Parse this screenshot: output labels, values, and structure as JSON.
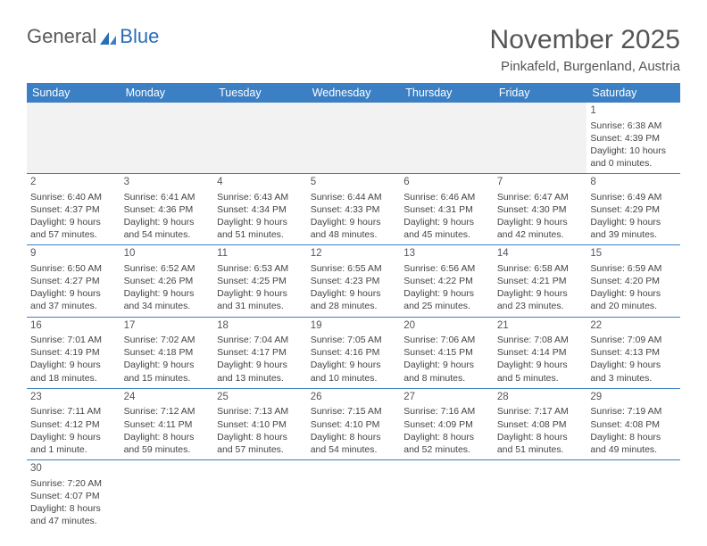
{
  "logo": {
    "part1": "General",
    "part2": "Blue"
  },
  "header": {
    "month_title": "November 2025",
    "location": "Pinkafeld, Burgenland, Austria"
  },
  "colors": {
    "header_bg": "#3b7fc4",
    "header_text": "#ffffff",
    "row_border": "#3b7fc4",
    "empty_bg": "#f2f2f2",
    "text": "#444444",
    "logo_blue": "#2a6db5"
  },
  "dow": [
    "Sunday",
    "Monday",
    "Tuesday",
    "Wednesday",
    "Thursday",
    "Friday",
    "Saturday"
  ],
  "weeks": [
    [
      null,
      null,
      null,
      null,
      null,
      null,
      {
        "d": "1",
        "sr": "Sunrise: 6:38 AM",
        "ss": "Sunset: 4:39 PM",
        "dl1": "Daylight: 10 hours",
        "dl2": "and 0 minutes."
      }
    ],
    [
      {
        "d": "2",
        "sr": "Sunrise: 6:40 AM",
        "ss": "Sunset: 4:37 PM",
        "dl1": "Daylight: 9 hours",
        "dl2": "and 57 minutes."
      },
      {
        "d": "3",
        "sr": "Sunrise: 6:41 AM",
        "ss": "Sunset: 4:36 PM",
        "dl1": "Daylight: 9 hours",
        "dl2": "and 54 minutes."
      },
      {
        "d": "4",
        "sr": "Sunrise: 6:43 AM",
        "ss": "Sunset: 4:34 PM",
        "dl1": "Daylight: 9 hours",
        "dl2": "and 51 minutes."
      },
      {
        "d": "5",
        "sr": "Sunrise: 6:44 AM",
        "ss": "Sunset: 4:33 PM",
        "dl1": "Daylight: 9 hours",
        "dl2": "and 48 minutes."
      },
      {
        "d": "6",
        "sr": "Sunrise: 6:46 AM",
        "ss": "Sunset: 4:31 PM",
        "dl1": "Daylight: 9 hours",
        "dl2": "and 45 minutes."
      },
      {
        "d": "7",
        "sr": "Sunrise: 6:47 AM",
        "ss": "Sunset: 4:30 PM",
        "dl1": "Daylight: 9 hours",
        "dl2": "and 42 minutes."
      },
      {
        "d": "8",
        "sr": "Sunrise: 6:49 AM",
        "ss": "Sunset: 4:29 PM",
        "dl1": "Daylight: 9 hours",
        "dl2": "and 39 minutes."
      }
    ],
    [
      {
        "d": "9",
        "sr": "Sunrise: 6:50 AM",
        "ss": "Sunset: 4:27 PM",
        "dl1": "Daylight: 9 hours",
        "dl2": "and 37 minutes."
      },
      {
        "d": "10",
        "sr": "Sunrise: 6:52 AM",
        "ss": "Sunset: 4:26 PM",
        "dl1": "Daylight: 9 hours",
        "dl2": "and 34 minutes."
      },
      {
        "d": "11",
        "sr": "Sunrise: 6:53 AM",
        "ss": "Sunset: 4:25 PM",
        "dl1": "Daylight: 9 hours",
        "dl2": "and 31 minutes."
      },
      {
        "d": "12",
        "sr": "Sunrise: 6:55 AM",
        "ss": "Sunset: 4:23 PM",
        "dl1": "Daylight: 9 hours",
        "dl2": "and 28 minutes."
      },
      {
        "d": "13",
        "sr": "Sunrise: 6:56 AM",
        "ss": "Sunset: 4:22 PM",
        "dl1": "Daylight: 9 hours",
        "dl2": "and 25 minutes."
      },
      {
        "d": "14",
        "sr": "Sunrise: 6:58 AM",
        "ss": "Sunset: 4:21 PM",
        "dl1": "Daylight: 9 hours",
        "dl2": "and 23 minutes."
      },
      {
        "d": "15",
        "sr": "Sunrise: 6:59 AM",
        "ss": "Sunset: 4:20 PM",
        "dl1": "Daylight: 9 hours",
        "dl2": "and 20 minutes."
      }
    ],
    [
      {
        "d": "16",
        "sr": "Sunrise: 7:01 AM",
        "ss": "Sunset: 4:19 PM",
        "dl1": "Daylight: 9 hours",
        "dl2": "and 18 minutes."
      },
      {
        "d": "17",
        "sr": "Sunrise: 7:02 AM",
        "ss": "Sunset: 4:18 PM",
        "dl1": "Daylight: 9 hours",
        "dl2": "and 15 minutes."
      },
      {
        "d": "18",
        "sr": "Sunrise: 7:04 AM",
        "ss": "Sunset: 4:17 PM",
        "dl1": "Daylight: 9 hours",
        "dl2": "and 13 minutes."
      },
      {
        "d": "19",
        "sr": "Sunrise: 7:05 AM",
        "ss": "Sunset: 4:16 PM",
        "dl1": "Daylight: 9 hours",
        "dl2": "and 10 minutes."
      },
      {
        "d": "20",
        "sr": "Sunrise: 7:06 AM",
        "ss": "Sunset: 4:15 PM",
        "dl1": "Daylight: 9 hours",
        "dl2": "and 8 minutes."
      },
      {
        "d": "21",
        "sr": "Sunrise: 7:08 AM",
        "ss": "Sunset: 4:14 PM",
        "dl1": "Daylight: 9 hours",
        "dl2": "and 5 minutes."
      },
      {
        "d": "22",
        "sr": "Sunrise: 7:09 AM",
        "ss": "Sunset: 4:13 PM",
        "dl1": "Daylight: 9 hours",
        "dl2": "and 3 minutes."
      }
    ],
    [
      {
        "d": "23",
        "sr": "Sunrise: 7:11 AM",
        "ss": "Sunset: 4:12 PM",
        "dl1": "Daylight: 9 hours",
        "dl2": "and 1 minute."
      },
      {
        "d": "24",
        "sr": "Sunrise: 7:12 AM",
        "ss": "Sunset: 4:11 PM",
        "dl1": "Daylight: 8 hours",
        "dl2": "and 59 minutes."
      },
      {
        "d": "25",
        "sr": "Sunrise: 7:13 AM",
        "ss": "Sunset: 4:10 PM",
        "dl1": "Daylight: 8 hours",
        "dl2": "and 57 minutes."
      },
      {
        "d": "26",
        "sr": "Sunrise: 7:15 AM",
        "ss": "Sunset: 4:10 PM",
        "dl1": "Daylight: 8 hours",
        "dl2": "and 54 minutes."
      },
      {
        "d": "27",
        "sr": "Sunrise: 7:16 AM",
        "ss": "Sunset: 4:09 PM",
        "dl1": "Daylight: 8 hours",
        "dl2": "and 52 minutes."
      },
      {
        "d": "28",
        "sr": "Sunrise: 7:17 AM",
        "ss": "Sunset: 4:08 PM",
        "dl1": "Daylight: 8 hours",
        "dl2": "and 51 minutes."
      },
      {
        "d": "29",
        "sr": "Sunrise: 7:19 AM",
        "ss": "Sunset: 4:08 PM",
        "dl1": "Daylight: 8 hours",
        "dl2": "and 49 minutes."
      }
    ],
    [
      {
        "d": "30",
        "sr": "Sunrise: 7:20 AM",
        "ss": "Sunset: 4:07 PM",
        "dl1": "Daylight: 8 hours",
        "dl2": "and 47 minutes."
      },
      null,
      null,
      null,
      null,
      null,
      null
    ]
  ]
}
